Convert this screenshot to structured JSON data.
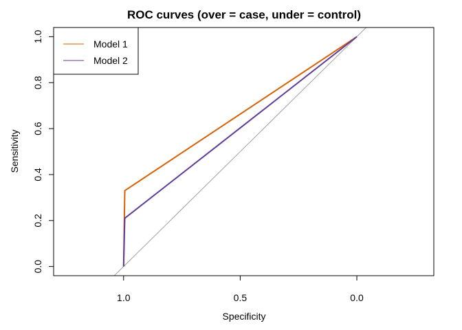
{
  "chart_data": {
    "type": "line",
    "title": "ROC curves (over = case, under = control)",
    "xlabel": "Specificity",
    "ylabel": "Sensitivity",
    "x_reversed": true,
    "xlim": [
      1.3,
      -0.33
    ],
    "ylim": [
      -0.04,
      1.04
    ],
    "xticks": [
      1.0,
      0.5,
      0.0
    ],
    "xtick_labels": [
      "1.0",
      "0.5",
      "0.0"
    ],
    "yticks": [
      0.0,
      0.2,
      0.4,
      0.6,
      0.8,
      1.0
    ],
    "ytick_labels": [
      "0.0",
      "0.2",
      "0.4",
      "0.6",
      "0.8",
      "1.0"
    ],
    "grid": false,
    "legend_position": "top-left",
    "series": [
      {
        "name": "Model 1",
        "color": "#d95f02",
        "x": [
          1.0,
          0.995,
          0.0
        ],
        "y": [
          0.0,
          0.33,
          1.0
        ]
      },
      {
        "name": "Model 2",
        "color": "#5e3c99",
        "x": [
          1.0,
          0.995,
          0.0
        ],
        "y": [
          0.0,
          0.21,
          1.0
        ]
      }
    ],
    "reference_line": {
      "color": "#a0a0a0",
      "x": [
        1.0,
        0.0
      ],
      "y": [
        0.0,
        1.0
      ]
    }
  }
}
